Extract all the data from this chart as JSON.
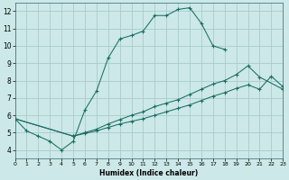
{
  "xlabel": "Humidex (Indice chaleur)",
  "background_color": "#cce8e8",
  "grid_color": "#aacccc",
  "line_color": "#1a6e60",
  "xlim": [
    0,
    23
  ],
  "ylim": [
    3.5,
    12.5
  ],
  "xticks": [
    0,
    1,
    2,
    3,
    4,
    5,
    6,
    7,
    8,
    9,
    10,
    11,
    12,
    13,
    14,
    15,
    16,
    17,
    18,
    19,
    20,
    21,
    22,
    23
  ],
  "yticks": [
    4,
    5,
    6,
    7,
    8,
    9,
    10,
    11,
    12
  ],
  "curve1_x": [
    0,
    1,
    2,
    3,
    4,
    5,
    6,
    7,
    8,
    9,
    10,
    11,
    12,
    13,
    14,
    15,
    16,
    17,
    18
  ],
  "curve1_y": [
    5.8,
    5.1,
    4.8,
    4.5,
    4.0,
    4.5,
    6.3,
    7.4,
    9.3,
    10.4,
    10.6,
    10.85,
    11.75,
    11.75,
    12.1,
    12.2,
    11.3,
    10.0,
    9.8
  ],
  "curve2_x": [
    0,
    5,
    6,
    7,
    8,
    9,
    10,
    11,
    12,
    13,
    14,
    15,
    16,
    17,
    18,
    19,
    20,
    21,
    23
  ],
  "curve2_y": [
    5.8,
    4.8,
    5.0,
    5.2,
    5.5,
    5.75,
    6.0,
    6.2,
    6.5,
    6.7,
    6.9,
    7.2,
    7.5,
    7.8,
    8.0,
    8.35,
    8.85,
    8.2,
    7.5
  ],
  "curve3_x": [
    0,
    5,
    6,
    7,
    8,
    9,
    10,
    11,
    12,
    13,
    14,
    15,
    16,
    17,
    18,
    19,
    20,
    21,
    22,
    23
  ],
  "curve3_y": [
    5.8,
    4.8,
    4.95,
    5.1,
    5.3,
    5.5,
    5.65,
    5.8,
    6.0,
    6.2,
    6.4,
    6.6,
    6.85,
    7.1,
    7.3,
    7.55,
    7.75,
    7.5,
    8.25,
    7.65
  ]
}
